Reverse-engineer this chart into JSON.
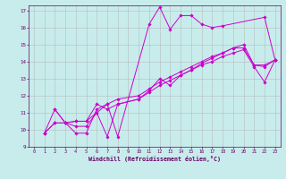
{
  "xlabel": "Windchill (Refroidissement éolien,°C)",
  "ylabel": "",
  "xlim": [
    -0.5,
    23.5
  ],
  "ylim": [
    9,
    17.3
  ],
  "xticks": [
    0,
    1,
    2,
    3,
    4,
    5,
    6,
    7,
    8,
    9,
    10,
    11,
    12,
    13,
    14,
    15,
    16,
    17,
    18,
    19,
    20,
    21,
    22,
    23
  ],
  "yticks": [
    9,
    10,
    11,
    12,
    13,
    14,
    15,
    16,
    17
  ],
  "bg_color": "#c8ecec",
  "grid_color": "#b0b0b0",
  "line_color": "#cc00cc",
  "lines": [
    {
      "x": [
        1,
        2,
        3,
        4,
        5,
        6,
        7,
        8,
        11,
        12,
        13,
        14,
        15,
        16,
        17,
        18,
        22,
        23
      ],
      "y": [
        9.8,
        11.2,
        10.4,
        9.8,
        9.8,
        11.2,
        11.5,
        9.6,
        16.2,
        17.2,
        15.9,
        16.7,
        16.7,
        16.2,
        16.0,
        16.1,
        16.6,
        14.1
      ]
    },
    {
      "x": [
        2,
        3,
        4,
        5,
        6,
        7,
        8,
        10,
        11,
        12,
        13,
        14,
        15,
        16,
        17,
        18,
        19,
        20,
        21,
        22,
        23
      ],
      "y": [
        11.2,
        10.4,
        10.5,
        10.5,
        11.5,
        11.2,
        11.5,
        11.8,
        12.3,
        13.0,
        12.6,
        13.2,
        13.5,
        13.9,
        14.2,
        14.5,
        14.8,
        14.8,
        13.8,
        13.8,
        14.1
      ]
    },
    {
      "x": [
        1,
        2,
        3,
        4,
        5,
        6,
        7,
        8,
        10,
        11,
        12,
        13,
        14,
        15,
        16,
        17,
        18,
        19,
        20,
        21,
        22,
        23
      ],
      "y": [
        9.8,
        10.4,
        10.4,
        10.5,
        10.5,
        11.0,
        11.5,
        11.8,
        12.0,
        12.4,
        12.8,
        13.1,
        13.4,
        13.7,
        14.0,
        14.3,
        14.5,
        14.8,
        15.0,
        13.8,
        13.7,
        14.1
      ]
    },
    {
      "x": [
        1,
        2,
        3,
        4,
        5,
        6,
        7,
        8,
        10,
        11,
        12,
        13,
        14,
        15,
        16,
        17,
        18,
        19,
        20,
        21,
        22,
        23
      ],
      "y": [
        9.8,
        10.4,
        10.4,
        10.2,
        10.2,
        11.0,
        9.6,
        11.5,
        11.8,
        12.2,
        12.6,
        12.9,
        13.2,
        13.5,
        13.8,
        14.0,
        14.3,
        14.5,
        14.7,
        13.7,
        12.8,
        14.1
      ]
    }
  ]
}
